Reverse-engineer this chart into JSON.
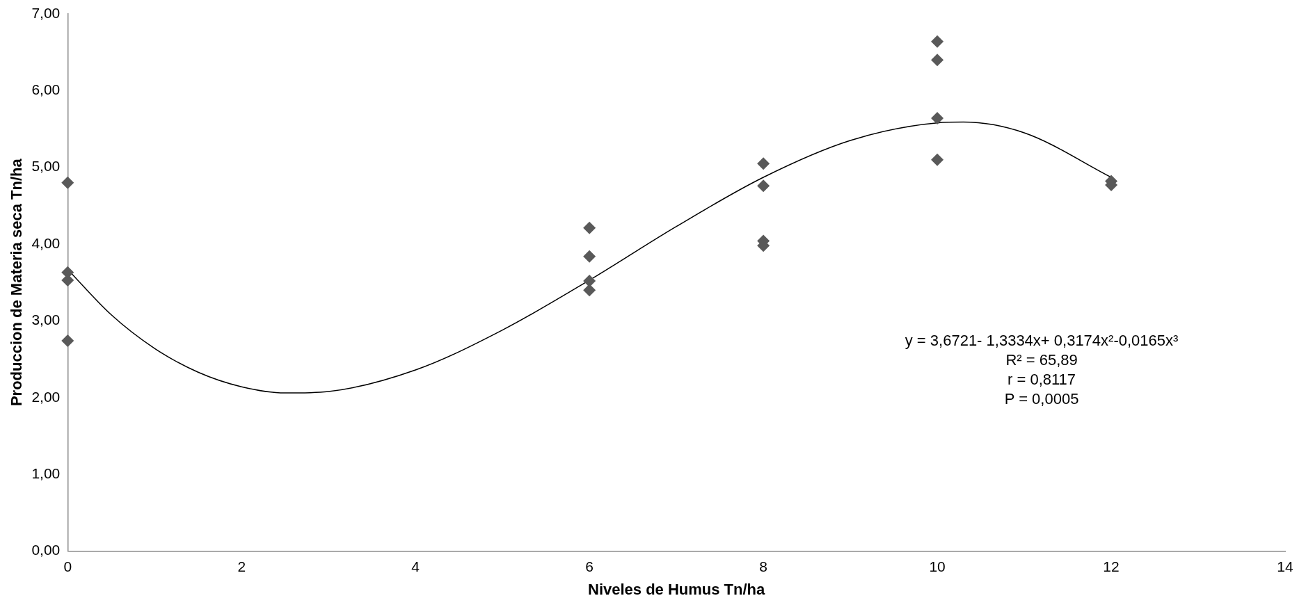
{
  "chart_data": {
    "type": "scatter",
    "xlabel": "Niveles de Humus Tn/ha",
    "ylabel": "Produccion de Materia seca Tn/ha",
    "xlim": [
      0,
      14
    ],
    "xticks": [
      0,
      2,
      4,
      6,
      8,
      10,
      12,
      14
    ],
    "ylim": [
      0,
      7
    ],
    "yticks": [
      {
        "value": 0,
        "label": "0,00"
      },
      {
        "value": 1,
        "label": "1,00"
      },
      {
        "value": 2,
        "label": "2,00"
      },
      {
        "value": 3,
        "label": "3,00"
      },
      {
        "value": 4,
        "label": "4,00"
      },
      {
        "value": 5,
        "label": "5,00"
      },
      {
        "value": 6,
        "label": "6,00"
      },
      {
        "value": 7,
        "label": "7,00"
      }
    ],
    "grid": false,
    "legend": false,
    "marker": "diamond",
    "series": [
      {
        "color": "#595959",
        "x": [
          0,
          0,
          0,
          0,
          6,
          6,
          6,
          6,
          8,
          8,
          8,
          8,
          10,
          10,
          10,
          10,
          12,
          12
        ],
        "values": [
          4.8,
          3.63,
          3.53,
          2.74,
          4.21,
          3.84,
          3.52,
          3.4,
          5.05,
          4.76,
          4.04,
          3.98,
          6.64,
          6.4,
          5.64,
          5.1,
          4.82,
          4.77
        ]
      },
      {
        "type": "line",
        "color": "#000000",
        "marker": "none",
        "line_style": "solid",
        "x": [
          0,
          0.5,
          1,
          1.5,
          2,
          2.5,
          3,
          4,
          5,
          6,
          7,
          8,
          9,
          10,
          10.3,
          11,
          12
        ],
        "values": [
          3.67,
          3.08,
          2.64,
          2.33,
          2.14,
          2.06,
          2.08,
          2.36,
          2.88,
          3.53,
          4.23,
          4.87,
          5.35,
          5.58,
          5.59,
          5.45,
          4.87
        ]
      }
    ],
    "annotations": [
      "y = 3,6721- 1,3334x+ 0,3174x²-0,0165x³",
      "R² = 65,89",
      "r = 0,8117",
      "P = 0,0005"
    ]
  }
}
